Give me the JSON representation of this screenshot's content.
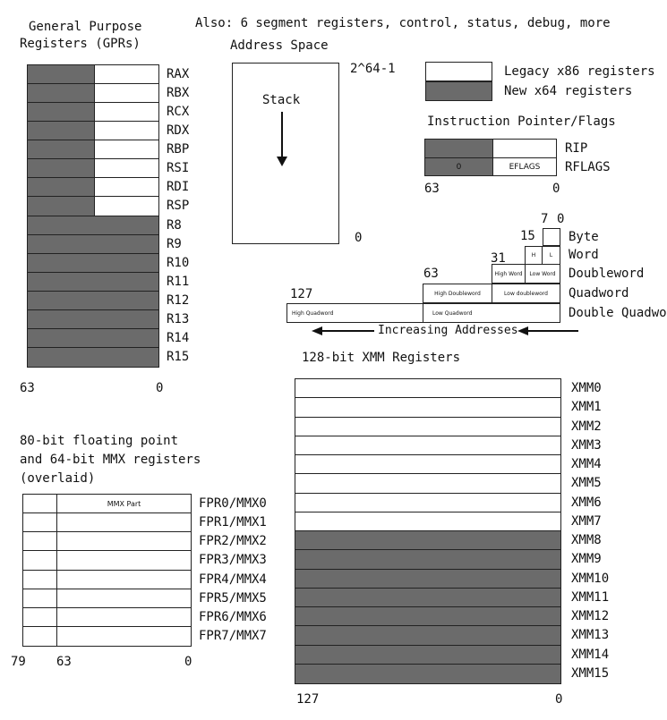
{
  "top_note": "Also: 6 segment registers, control, status, debug, more",
  "gpr": {
    "title_line1": "General Purpose",
    "title_line2": "Registers (GPRs)",
    "registers": [
      "RAX",
      "RBX",
      "RCX",
      "RDX",
      "RBP",
      "RSI",
      "RDI",
      "RSP",
      "R8",
      "R9",
      "R10",
      "R11",
      "R12",
      "R13",
      "R14",
      "R15"
    ],
    "legacy_count": 8,
    "bit_high": "63",
    "bit_low": "0"
  },
  "address_space": {
    "title": "Address Space",
    "top_label": "2^64-1",
    "bottom_label": "0",
    "stack_label": "Stack"
  },
  "legend": {
    "legacy": "Legacy x86 registers",
    "new": "New x64 registers"
  },
  "ip_flags": {
    "title": "Instruction Pointer/Flags",
    "rip": "RIP",
    "rflags": "RFLAGS",
    "zero_label": "0",
    "eflags_label": "EFLAGS",
    "bit_high": "63",
    "bit_low": "0"
  },
  "data_sizes": {
    "bit_7": "7",
    "bit_0": "0",
    "bit_15": "15",
    "bit_31": "31",
    "bit_63": "63",
    "bit_127": "127",
    "labels": [
      "Byte",
      "Word",
      "Doubleword",
      "Quadword",
      "Double Quadword"
    ],
    "h": "H",
    "l": "L",
    "high_word": "High Word",
    "low_word": "Low Word",
    "high_dword": "High Doubleword",
    "low_dword": "Low doubleword",
    "high_qword": "High Quadword",
    "low_qword": "Low Quadword",
    "increasing": "Increasing Addresses"
  },
  "fpu": {
    "title_line1": "80-bit floating point",
    "title_line2": "and 64-bit MMX registers",
    "title_line3": "(overlaid)",
    "mmx_part": "MMX Part",
    "registers": [
      "FPR0/MMX0",
      "FPR1/MMX1",
      "FPR2/MMX2",
      "FPR3/MMX3",
      "FPR4/MMX4",
      "FPR5/MMX5",
      "FPR6/MMX6",
      "FPR7/MMX7"
    ],
    "bit_79": "79",
    "bit_63": "63",
    "bit_0": "0"
  },
  "xmm": {
    "title": "128-bit XMM Registers",
    "registers": [
      "XMM0",
      "XMM1",
      "XMM2",
      "XMM3",
      "XMM4",
      "XMM5",
      "XMM6",
      "XMM7",
      "XMM8",
      "XMM9",
      "XMM10",
      "XMM11",
      "XMM12",
      "XMM13",
      "XMM14",
      "XMM15"
    ],
    "legacy_count": 8,
    "bit_high": "127",
    "bit_low": "0"
  },
  "colors": {
    "legacy": "#ffffff",
    "new": "#6b6b6b",
    "line": "#222222"
  }
}
